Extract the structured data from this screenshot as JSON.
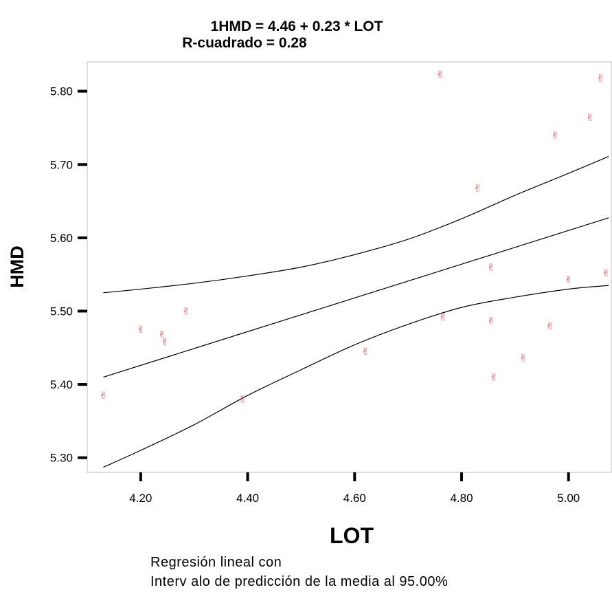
{
  "chart_data": {
    "type": "scatter",
    "title_lines": [
      "1HMD = 4.46 + 0.23 * LOT",
      "R-cuadrado = 0.28"
    ],
    "xlabel": "LOT",
    "ylabel": "HMD",
    "xlim": [
      4.1,
      5.08
    ],
    "ylim": [
      5.28,
      5.84
    ],
    "x_ticks": [
      4.2,
      4.4,
      4.6,
      4.8,
      5.0
    ],
    "x_tick_labels": [
      "4.20",
      "4.40",
      "4.60",
      "4.80",
      "5.00"
    ],
    "y_ticks": [
      5.3,
      5.4,
      5.5,
      5.6,
      5.7,
      5.8
    ],
    "y_tick_labels": [
      "5.30",
      "5.40",
      "5.50",
      "5.60",
      "5.70",
      "5.80"
    ],
    "points": [
      {
        "x": 4.13,
        "y": 5.385
      },
      {
        "x": 4.2,
        "y": 5.475
      },
      {
        "x": 4.24,
        "y": 5.468
      },
      {
        "x": 4.245,
        "y": 5.458
      },
      {
        "x": 4.285,
        "y": 5.5
      },
      {
        "x": 4.39,
        "y": 5.38
      },
      {
        "x": 4.62,
        "y": 5.445
      },
      {
        "x": 4.76,
        "y": 5.823
      },
      {
        "x": 4.765,
        "y": 5.492
      },
      {
        "x": 4.83,
        "y": 5.668
      },
      {
        "x": 4.855,
        "y": 5.56
      },
      {
        "x": 4.855,
        "y": 5.487
      },
      {
        "x": 4.86,
        "y": 5.41
      },
      {
        "x": 4.915,
        "y": 5.436
      },
      {
        "x": 4.965,
        "y": 5.48
      },
      {
        "x": 4.975,
        "y": 5.74
      },
      {
        "x": 5.0,
        "y": 5.543
      },
      {
        "x": 5.04,
        "y": 5.764
      },
      {
        "x": 5.06,
        "y": 5.818
      },
      {
        "x": 5.07,
        "y": 5.552
      }
    ],
    "regression": {
      "intercept": 4.46,
      "slope": 0.23
    },
    "confidence_band": {
      "x": [
        4.13,
        4.2,
        4.3,
        4.4,
        4.5,
        4.6,
        4.7,
        4.8,
        4.9,
        5.0,
        5.075
      ],
      "upper": [
        5.525,
        5.53,
        5.538,
        5.548,
        5.56,
        5.577,
        5.598,
        5.626,
        5.658,
        5.688,
        5.711
      ],
      "lower": [
        5.287,
        5.31,
        5.345,
        5.385,
        5.42,
        5.454,
        5.482,
        5.505,
        5.519,
        5.53,
        5.535
      ]
    },
    "point_marker": "✌",
    "colors": {
      "points": "#e8454f",
      "lines": "#000000"
    },
    "grid": false,
    "footer_lines": [
      "Regresión lineal con",
      "Interv alo de predicción de la media al 95.00%"
    ]
  }
}
